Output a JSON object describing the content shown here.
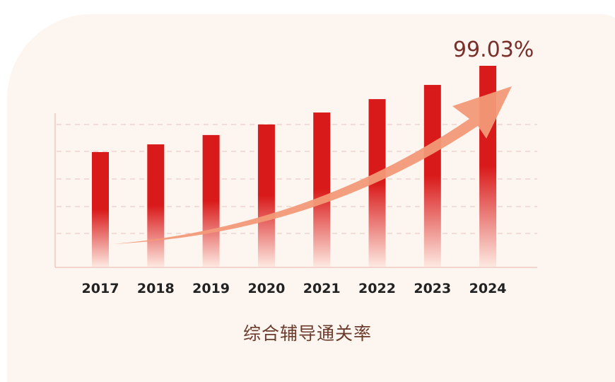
{
  "chart_data": {
    "type": "bar",
    "categories": [
      "2017",
      "2018",
      "2019",
      "2020",
      "2021",
      "2022",
      "2023",
      "2024"
    ],
    "values": [
      56.5,
      60.3,
      64.9,
      70.1,
      76.0,
      82.6,
      89.6,
      99.03
    ],
    "data_labels": {
      "2024": "99.03%"
    },
    "title": "",
    "caption": "综合辅导通关率",
    "xlabel": "",
    "ylabel": "",
    "ylim": [
      0,
      100
    ],
    "grid": "horizontal dashed",
    "legend": "none",
    "trend_arrow": true,
    "colors": {
      "bar_top": "#d91a1a",
      "bar_bottom": "#fde8e0",
      "arrow": "#f29a78",
      "label": "#7a2f2a",
      "tick": "#222222"
    }
  }
}
